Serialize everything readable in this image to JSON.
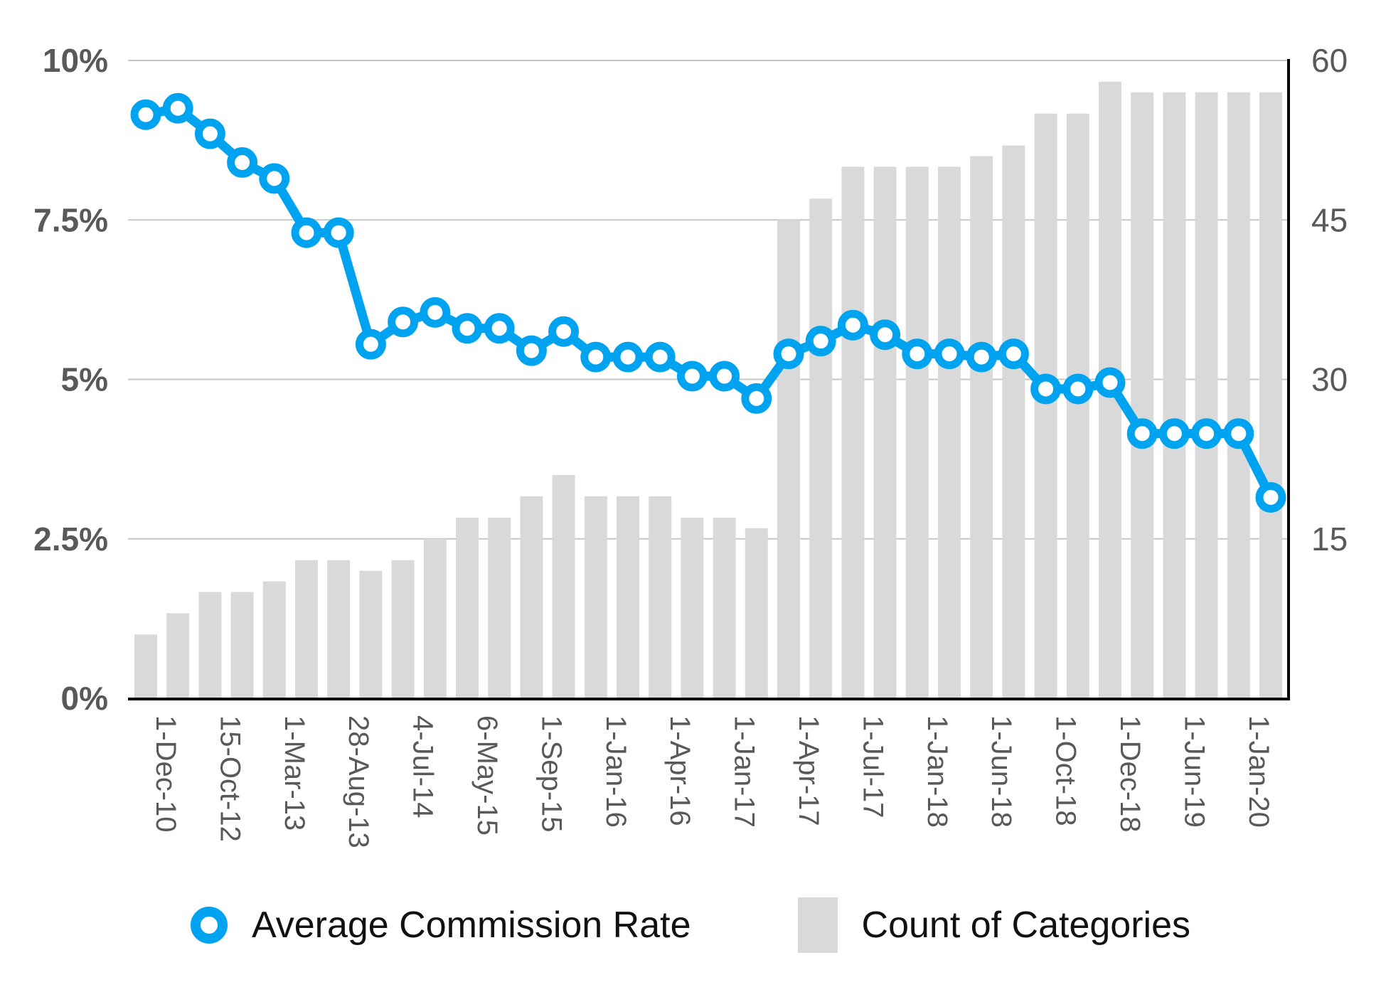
{
  "background": "#ffffff",
  "colors": {
    "line": "#00a3ef",
    "bar": "#d9d9d9",
    "gridline": "#c7c7c7",
    "axis_line": "#000000",
    "tick_text": "#595959",
    "legend_text": "#111111"
  },
  "legend": {
    "items": [
      {
        "label": "Average Commission Rate",
        "marker": "blue-donut-marker"
      },
      {
        "label": "Count of Categories",
        "marker": "gray-bar-swatch"
      }
    ],
    "position": "bottom"
  },
  "chart_data": {
    "type": "combo",
    "title": "",
    "grid": true,
    "legend_position": "bottom",
    "categories": [
      "1-Dec-10",
      "",
      "15-Oct-12",
      "",
      "1-Mar-13",
      "",
      "28-Aug-13",
      "",
      "4-Jul-14",
      "",
      "6-May-15",
      "",
      "1-Sep-15",
      "",
      "1-Jan-16",
      "",
      "1-Apr-16",
      "",
      "1-Jan-17",
      "",
      "1-Apr-17",
      "",
      "1-Jul-17",
      "",
      "1-Jan-18",
      "",
      "1-Jun-18",
      "",
      "1-Oct-18",
      "",
      "1-Dec-18",
      "",
      "1-Jun-19",
      "",
      "1-Jan-20",
      ""
    ],
    "x_tick_labels_shown": [
      "1-Dec-10",
      "15-Oct-12",
      "1-Mar-13",
      "28-Aug-13",
      "4-Jul-14",
      "6-May-15",
      "1-Sep-15",
      "1-Jan-16",
      "1-Apr-16",
      "1-Jan-17",
      "1-Apr-17",
      "1-Jul-17",
      "1-Jan-18",
      "1-Jun-18",
      "1-Oct-18",
      "1-Dec-18",
      "1-Jun-19",
      "1-Jan-20"
    ],
    "series": [
      {
        "name": "Average Commission Rate",
        "type": "line",
        "axis": "left",
        "unit": "%",
        "color": "#00a3ef",
        "values": [
          9.15,
          9.25,
          8.85,
          8.4,
          8.15,
          7.3,
          7.3,
          5.55,
          5.9,
          6.05,
          5.8,
          5.8,
          5.45,
          5.75,
          5.35,
          5.35,
          5.35,
          5.05,
          5.05,
          4.7,
          5.4,
          5.6,
          5.85,
          5.7,
          5.4,
          5.4,
          5.35,
          5.4,
          4.85,
          4.85,
          4.95,
          4.15,
          4.15,
          4.15,
          4.15,
          3.15
        ]
      },
      {
        "name": "Count of Categories",
        "type": "bar",
        "axis": "right",
        "unit": "",
        "color": "#d9d9d9",
        "values": [
          6,
          8,
          10,
          10,
          11,
          13,
          13,
          12,
          13,
          15,
          17,
          17,
          19,
          21,
          19,
          19,
          19,
          17,
          17,
          16,
          45,
          47,
          50,
          50,
          50,
          50,
          51,
          52,
          55,
          55,
          58,
          57,
          57,
          57,
          57,
          57
        ]
      }
    ],
    "left_axis": {
      "min": 0,
      "max": 10,
      "tick_values": [
        0,
        2.5,
        5,
        7.5,
        10
      ],
      "tick_labels": [
        "0%",
        "2.5%",
        "5%",
        "7.5%",
        "10%"
      ]
    },
    "right_axis": {
      "min": 0,
      "max": 60,
      "tick_values": [
        15,
        30,
        45,
        60
      ],
      "tick_labels": [
        "15",
        "30",
        "45",
        "60"
      ]
    }
  }
}
